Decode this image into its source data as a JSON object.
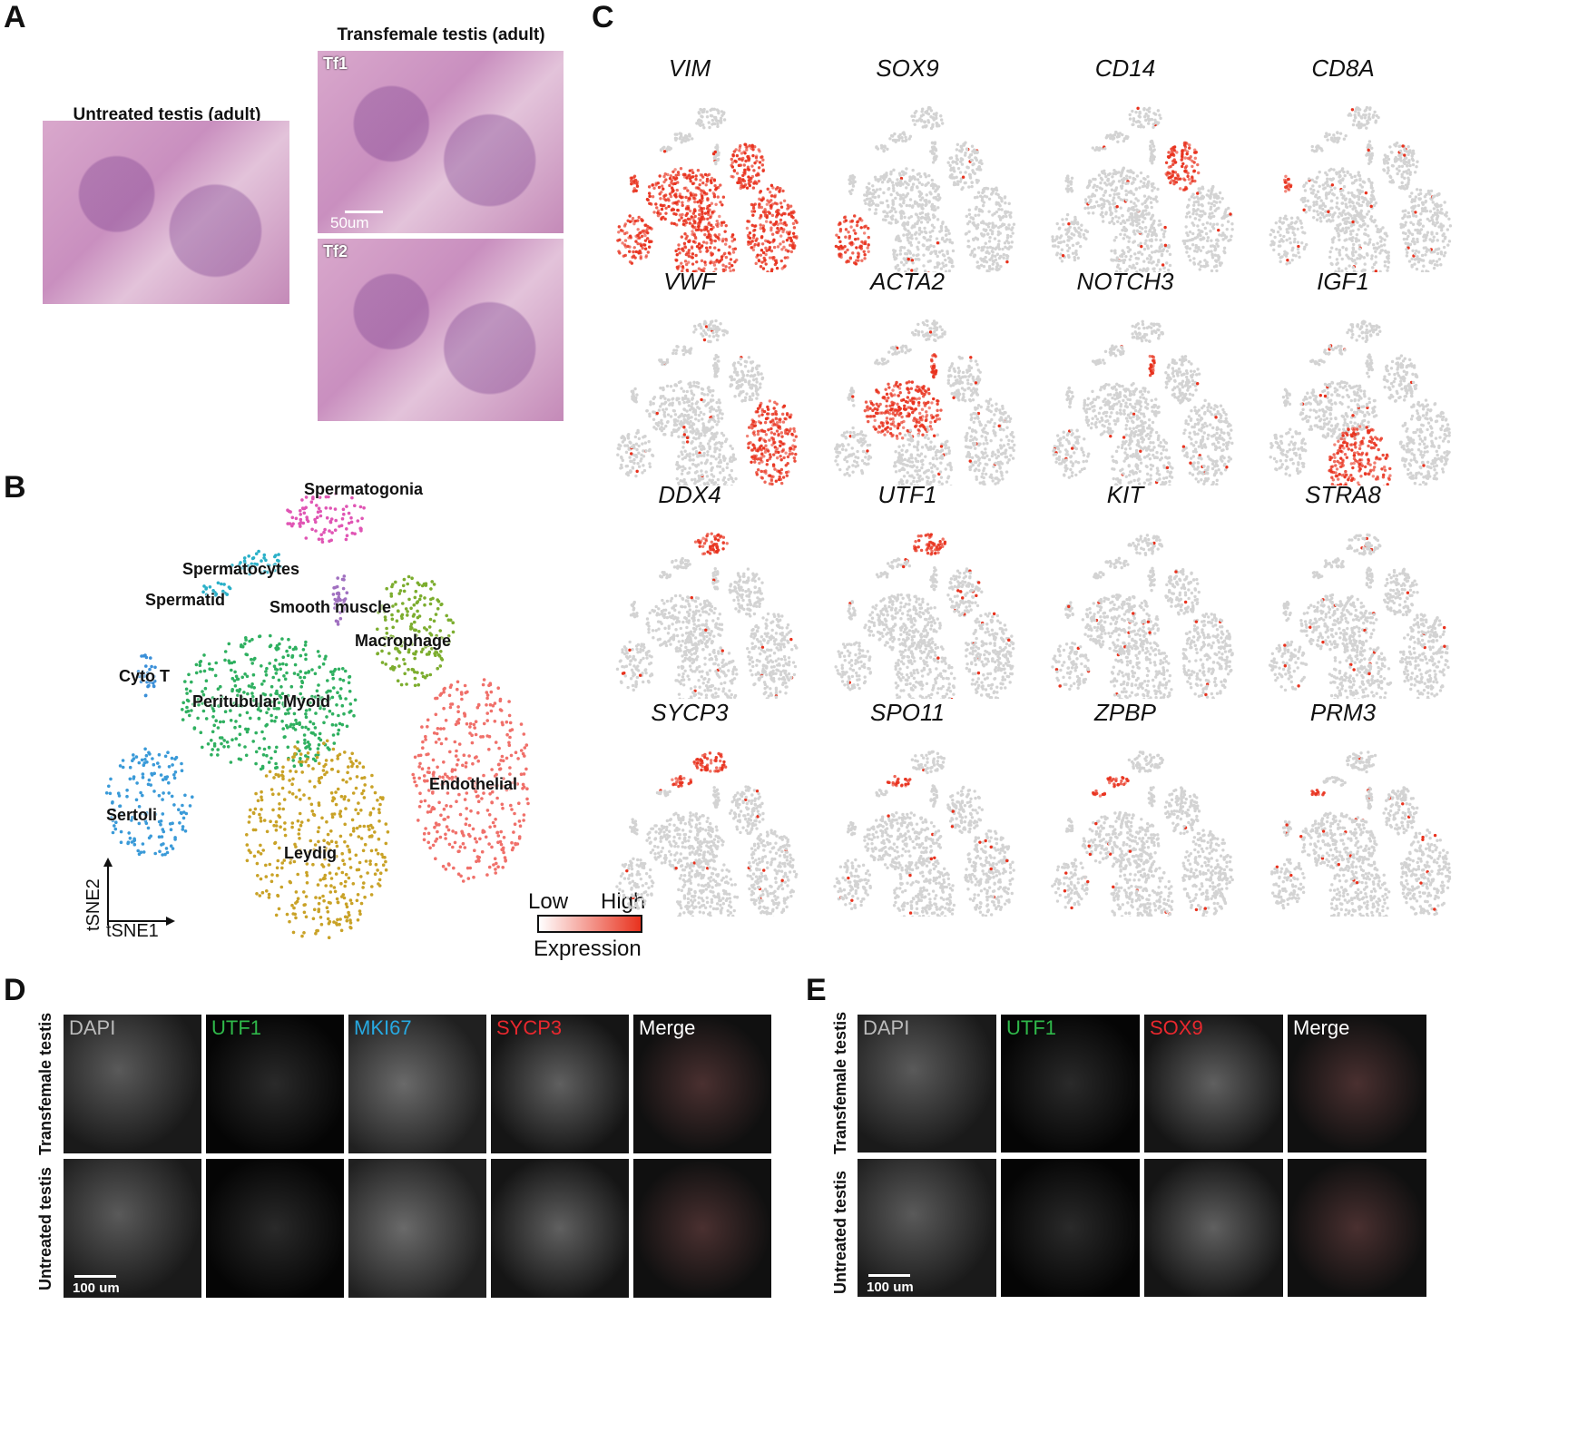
{
  "panels": {
    "a": "A",
    "b": "B",
    "c": "C",
    "d": "D",
    "e": "E"
  },
  "panelA": {
    "untreated_title": "Untreated testis (adult)",
    "transfemale_title": "Transfemale testis (adult)",
    "tf1": "Tf1",
    "tf2": "Tf2",
    "scale": "50um"
  },
  "panelB": {
    "clusters": [
      {
        "name": "Spermatogonia",
        "color": "#e055b4"
      },
      {
        "name": "Spermatocytes",
        "color": "#2ab0c8"
      },
      {
        "name": "Spermatid",
        "color": "#2ab0c8"
      },
      {
        "name": "Smooth muscle",
        "color": "#a070c0"
      },
      {
        "name": "Macrophage",
        "color": "#7cad2e"
      },
      {
        "name": "Cyto T",
        "color": "#3a8fd8"
      },
      {
        "name": "Peritubular Myoid",
        "color": "#2fb060"
      },
      {
        "name": "Endothelial",
        "color": "#f0706a"
      },
      {
        "name": "Sertoli",
        "color": "#3a9ad8"
      },
      {
        "name": "Leydig",
        "color": "#c9a227"
      }
    ],
    "axis_y": "tSNE2",
    "axis_x": "tSNE1",
    "legend_low": "Low",
    "legend_high": "High",
    "legend_title": "Expression"
  },
  "panelC": {
    "genes": [
      "VIM",
      "SOX9",
      "CD14",
      "CD8A",
      "VWF",
      "ACTA2",
      "NOTCH3",
      "IGF1",
      "DDX4",
      "UTF1",
      "KIT",
      "STRA8",
      "SYCP3",
      "SPO11",
      "ZPBP",
      "PRM3"
    ],
    "grey": "#d3d3d3",
    "high": "#e8321e"
  },
  "panelD": {
    "channels": [
      {
        "label": "DAPI",
        "color": "#bbbbbb"
      },
      {
        "label": "UTF1",
        "color": "#2fb84a"
      },
      {
        "label": "MKI67",
        "color": "#27a9e1"
      },
      {
        "label": "SYCP3",
        "color": "#e8282e"
      },
      {
        "label": "Merge",
        "color": "#ffffff"
      }
    ],
    "rows": [
      "Transfemale testis",
      "Untreated testis"
    ],
    "scale": "100 um"
  },
  "panelE": {
    "channels": [
      {
        "label": "DAPI",
        "color": "#bbbbbb"
      },
      {
        "label": "UTF1",
        "color": "#2fb84a"
      },
      {
        "label": "SOX9",
        "color": "#e8282e"
      },
      {
        "label": "Merge",
        "color": "#ffffff"
      }
    ],
    "rows": [
      "Transfemale testis",
      "Untreated testis"
    ],
    "scale": "100 um"
  }
}
